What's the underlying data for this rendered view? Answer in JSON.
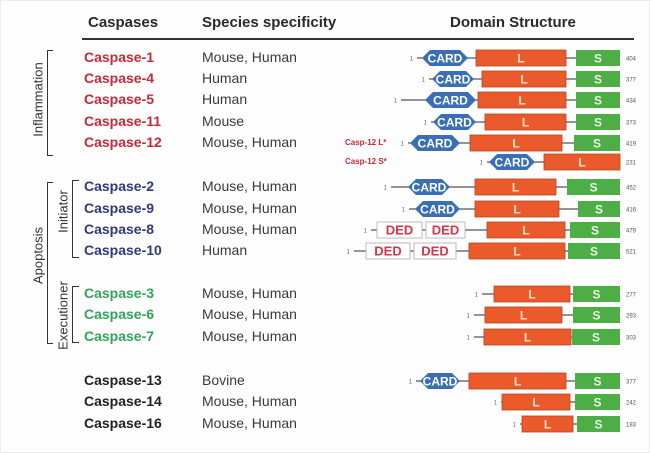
{
  "headers": {
    "caspases": "Caspases",
    "species": "Species specificity",
    "domain": "Domain Structure"
  },
  "groups": {
    "inflammation": "Inflammation",
    "apoptosis": "Apoptosis",
    "initiator": "Initiator",
    "executioner": "Executioner"
  },
  "colors": {
    "inflammation": "#c8283c",
    "initiator": "#303a78",
    "executioner": "#2fa55a",
    "other": "#222222",
    "card": "#3a6fb5",
    "large": "#ea5a2a",
    "small": "#4cae45",
    "ded_text": "#d8344a"
  },
  "domain_labels": {
    "card": "CARD",
    "ded": "DED",
    "large": "L",
    "small": "S",
    "start": "1"
  },
  "rows": [
    {
      "name": "Caspase-1",
      "species": "Mouse, Human",
      "group": "inflammation",
      "length": "404",
      "domains": [
        "CARD",
        "L",
        "S"
      ]
    },
    {
      "name": "Caspase-4",
      "species": "Human",
      "group": "inflammation",
      "length": "377",
      "domains": [
        "CARD",
        "L",
        "S"
      ]
    },
    {
      "name": "Caspase-5",
      "species": "Human",
      "group": "inflammation",
      "length": "434",
      "domains": [
        "CARD",
        "L",
        "S"
      ]
    },
    {
      "name": "Caspase-11",
      "species": "Mouse",
      "group": "inflammation",
      "length": "373",
      "domains": [
        "CARD",
        "L",
        "S"
      ]
    },
    {
      "name": "Caspase-12",
      "species": "Mouse, Human",
      "group": "inflammation",
      "length": "419",
      "isoform": "Casp-12 L*",
      "domains": [
        "CARD",
        "L",
        "S"
      ]
    },
    {
      "name": "",
      "species": "",
      "group": "inflammation",
      "length": "231",
      "isoform": "Casp-12 S*",
      "domains": [
        "CARD",
        "L"
      ]
    },
    {
      "name": "Caspase-2",
      "species": "Mouse, Human",
      "group": "initiator",
      "length": "452",
      "domains": [
        "CARD",
        "L",
        "S"
      ]
    },
    {
      "name": "Caspase-9",
      "species": "Mouse, Human",
      "group": "initiator",
      "length": "416",
      "domains": [
        "CARD",
        "L",
        "S"
      ]
    },
    {
      "name": "Caspase-8",
      "species": "Mouse, Human",
      "group": "initiator",
      "length": "479",
      "domains": [
        "DED",
        "DED",
        "L",
        "S"
      ]
    },
    {
      "name": "Caspase-10",
      "species": "Human",
      "group": "initiator",
      "length": "521",
      "domains": [
        "DED",
        "DED",
        "L",
        "S"
      ]
    },
    {
      "name": "Caspase-3",
      "species": "Mouse, Human",
      "group": "executioner",
      "length": "277",
      "domains": [
        "L",
        "S"
      ]
    },
    {
      "name": "Caspase-6",
      "species": "Mouse, Human",
      "group": "executioner",
      "length": "293",
      "domains": [
        "L",
        "S"
      ]
    },
    {
      "name": "Caspase-7",
      "species": "Mouse, Human",
      "group": "executioner",
      "length": "303",
      "domains": [
        "L",
        "S"
      ]
    },
    {
      "name": "Caspase-13",
      "species": "Bovine",
      "group": "other",
      "length": "377",
      "domains": [
        "CARD",
        "L",
        "S"
      ]
    },
    {
      "name": "Caspase-14",
      "species": "Mouse, Human",
      "group": "other",
      "length": "242",
      "domains": [
        "L",
        "S"
      ]
    },
    {
      "name": "Caspase-16",
      "species": "Mouse, Human",
      "group": "other",
      "length": "183",
      "domains": [
        "L",
        "S"
      ]
    }
  ]
}
